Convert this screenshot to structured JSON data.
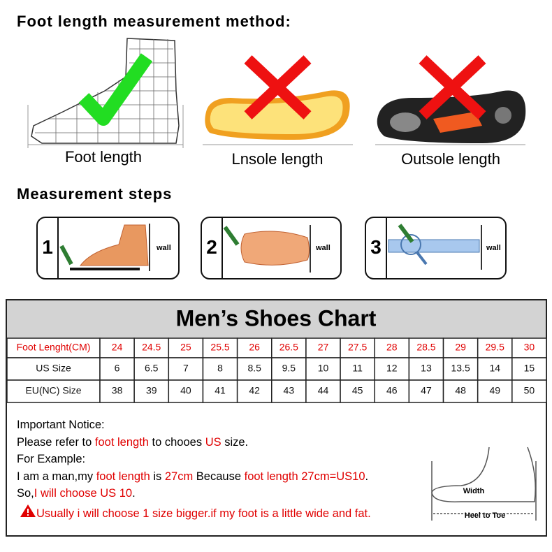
{
  "header": {
    "title": "Foot length measurement method:"
  },
  "methods": [
    {
      "label": "Foot length"
    },
    {
      "label": "Lnsole length"
    },
    {
      "label": "Outsole length"
    }
  ],
  "steps": {
    "title": "Measurement steps",
    "items": [
      {
        "number": "1",
        "wall": "wall"
      },
      {
        "number": "2",
        "wall": "wall"
      },
      {
        "number": "3",
        "wall": "wall"
      }
    ]
  },
  "table": {
    "title": "Men’s Shoes Chart",
    "rows": [
      [
        "Foot Lenght(CM)",
        24,
        24.5,
        25,
        25.5,
        26,
        26.5,
        27,
        27.5,
        28,
        28.5,
        29,
        29.5,
        30
      ],
      [
        "US Size",
        6,
        6.5,
        7,
        8,
        8.5,
        9.5,
        10,
        11,
        12,
        13,
        13.5,
        14,
        15
      ],
      [
        "EU(NC) Size",
        38,
        39,
        40,
        41,
        42,
        43,
        44,
        45,
        46,
        47,
        48,
        49,
        50
      ]
    ]
  },
  "notice": {
    "lines": [
      [
        {
          "text": "Important Notice:"
        }
      ],
      [
        {
          "text": "Please refer to "
        },
        {
          "text": "foot length",
          "color": "#e00000"
        },
        {
          "text": " to chooes "
        },
        {
          "text": "US",
          "color": "#e00000"
        },
        {
          "text": " size."
        }
      ],
      [
        {
          "text": "For Example:"
        }
      ],
      [
        {
          "text": "I am a man,my "
        },
        {
          "text": "foot length",
          "color": "#e00000"
        },
        {
          "text": " is "
        },
        {
          "text": "27cm",
          "color": "#e00000"
        },
        {
          "text": " Because "
        },
        {
          "text": "foot length 27cm=US10",
          "color": "#e00000"
        },
        {
          "text": "."
        }
      ],
      [
        {
          "text": "So,"
        },
        {
          "text": "I will choose US 10",
          "color": "#e00000"
        },
        {
          "text": "."
        }
      ],
      [
        {
          "text": "Usually i will choose 1 size bigger.if my foot is a little wide and fat.",
          "color": "#e00000"
        }
      ]
    ],
    "diagram": {
      "width": "Width",
      "length": "Heel to Toe"
    }
  }
}
